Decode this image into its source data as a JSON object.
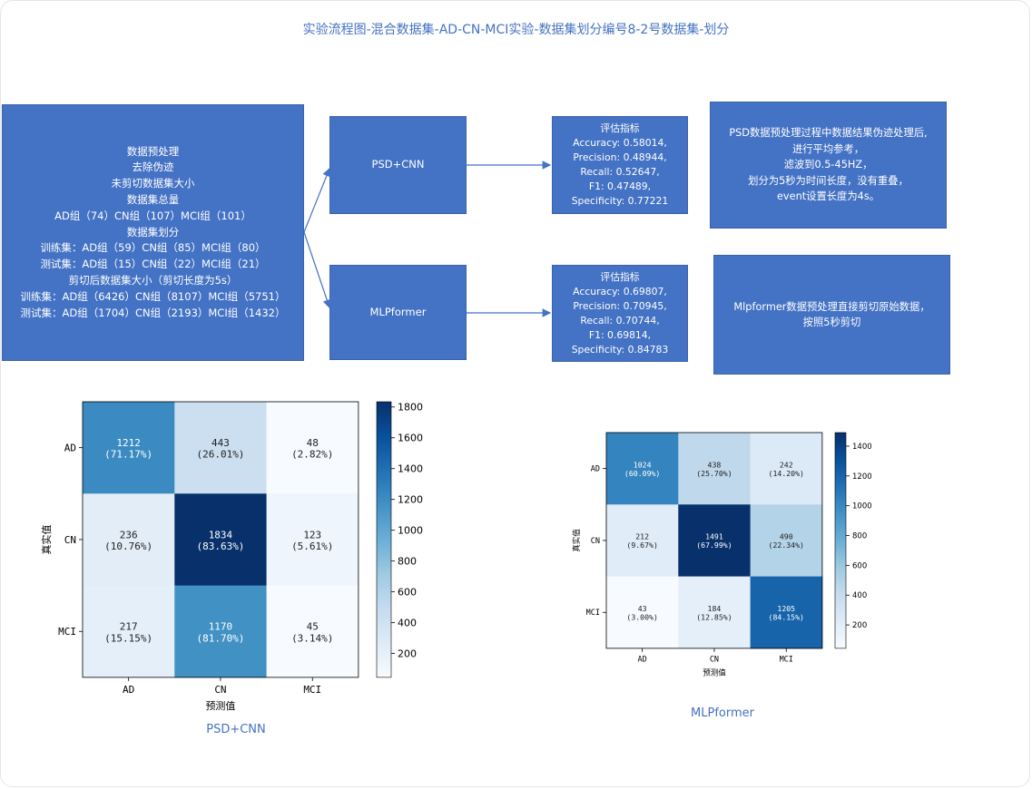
{
  "title": "实验流程图-混合数据集-AD-CN-MCI实验-数据集划分编号8-2号数据集-划分",
  "preprocess_box": {
    "lines": [
      "数据预处理",
      "去除伪迹",
      "未剪切数据集大小",
      "数据集总量",
      "AD组（74）CN组（107）MCI组（101）",
      "数据集划分",
      "训练集：AD组（59）CN组（85）MCI组（80）",
      "测试集：AD组（15）CN组（22）MCI组（21）",
      "剪切后数据集大小（剪切长度为5s）",
      "训练集：AD组（6426）CN组（8107）MCI组（5751）",
      "测试集：AD组（1704）CN组（2193）MCI组（1432）"
    ]
  },
  "model_boxes": {
    "psd_cnn": "PSD+CNN",
    "mlpformer": "MLPformer"
  },
  "eval_boxes": {
    "psd_cnn": [
      "评估指标",
      "Accuracy: 0.58014,",
      "Precision: 0.48944,",
      "Recall: 0.52647,",
      "F1: 0.47489,",
      "Specificity: 0.77221"
    ],
    "mlpformer": [
      "评估指标",
      "Accuracy: 0.69807,",
      "Precision: 0.70945,",
      "Recall: 0.70744,",
      "F1: 0.69814,",
      "Specificity: 0.84783"
    ]
  },
  "note_boxes": {
    "psd_cnn": [
      "PSD数据预处理过程中数据结果伪迹处理后,",
      "进行平均参考，",
      "滤波到0.5-45HZ，",
      "划分为5秒为时间长度，没有重叠，",
      "event设置长度为4s。"
    ],
    "mlpformer": [
      "Mlpformer数据预处理直接剪切原始数据，",
      "按照5秒剪切"
    ]
  },
  "captions": {
    "psd_cnn": "PSD+CNN",
    "mlpformer": "MLPformer"
  },
  "colors": {
    "box_fill": "#4472c4",
    "text_accent": "#4472c4",
    "cmap": [
      "#f7fbff",
      "#deebf7",
      "#c6dbef",
      "#9ecae1",
      "#6baed6",
      "#4292c6",
      "#2171b5",
      "#08519c",
      "#08306b"
    ]
  },
  "chart_data": [
    {
      "type": "heatmap",
      "name": "PSD+CNN confusion matrix",
      "xlabel": "预测值",
      "ylabel": "真实值",
      "x_categories": [
        "AD",
        "CN",
        "MCI"
      ],
      "y_categories": [
        "AD",
        "CN",
        "MCI"
      ],
      "values": [
        [
          1212,
          443,
          48
        ],
        [
          236,
          1834,
          123
        ],
        [
          217,
          1170,
          45
        ]
      ],
      "percent_labels": [
        [
          "(71.17%)",
          "(26.01%)",
          "(2.82%)"
        ],
        [
          "(10.76%)",
          "(83.63%)",
          "(5.61%)"
        ],
        [
          "(15.15%)",
          "(81.70%)",
          "(3.14%)"
        ]
      ],
      "colorbar_range": [
        45,
        1834
      ],
      "colorbar_ticks": [
        200,
        400,
        600,
        800,
        1000,
        1200,
        1400,
        1600,
        1800
      ]
    },
    {
      "type": "heatmap",
      "name": "MLPformer confusion matrix",
      "xlabel": "预测值",
      "ylabel": "真实值",
      "x_categories": [
        "AD",
        "CN",
        "MCI"
      ],
      "y_categories": [
        "AD",
        "CN",
        "MCI"
      ],
      "values": [
        [
          1024,
          438,
          242
        ],
        [
          212,
          1491,
          490
        ],
        [
          43,
          184,
          1205
        ]
      ],
      "percent_labels": [
        [
          "(60.09%)",
          "(25.70%)",
          "(14.20%)"
        ],
        [
          "(9.67%)",
          "(67.99%)",
          "(22.34%)"
        ],
        [
          "(3.00%)",
          "(12.85%)",
          "(84.15%)"
        ]
      ],
      "colorbar_range": [
        43,
        1491
      ],
      "colorbar_ticks": [
        200,
        400,
        600,
        800,
        1000,
        1200,
        1400
      ]
    }
  ]
}
